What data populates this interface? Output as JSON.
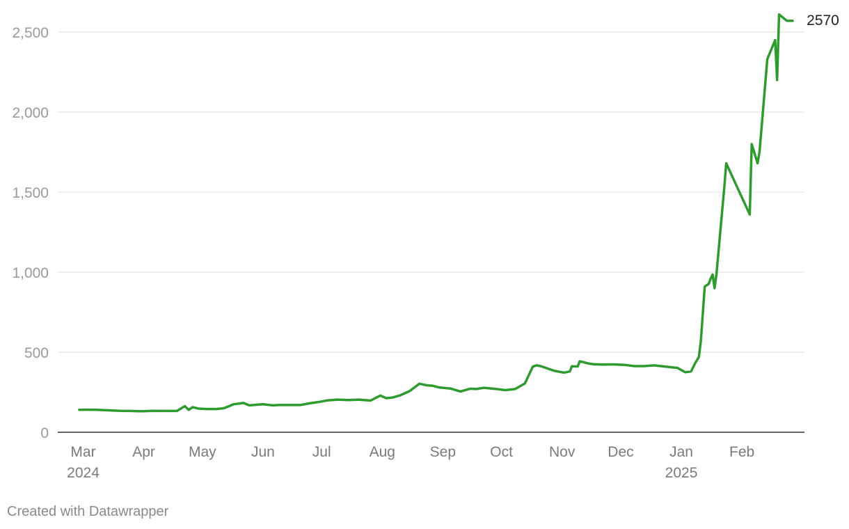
{
  "chart_data": {
    "type": "line",
    "title": "",
    "xlabel": "",
    "ylabel": "",
    "ylim": [
      0,
      2500
    ],
    "yticks": [
      0,
      500,
      1000,
      1500,
      2000,
      2500
    ],
    "ytick_labels": [
      "0",
      "500",
      "1,000",
      "1,500",
      "2,000",
      "2,500"
    ],
    "xtick_labels": [
      {
        "date": "2024-03-01",
        "line1": "Mar",
        "line2": "2024"
      },
      {
        "date": "2024-04-01",
        "line1": "Apr",
        "line2": ""
      },
      {
        "date": "2024-05-01",
        "line1": "May",
        "line2": ""
      },
      {
        "date": "2024-06-01",
        "line1": "Jun",
        "line2": ""
      },
      {
        "date": "2024-07-01",
        "line1": "Jul",
        "line2": ""
      },
      {
        "date": "2024-08-01",
        "line1": "Aug",
        "line2": ""
      },
      {
        "date": "2024-09-01",
        "line1": "Sep",
        "line2": ""
      },
      {
        "date": "2024-10-01",
        "line1": "Oct",
        "line2": ""
      },
      {
        "date": "2024-11-01",
        "line1": "Nov",
        "line2": ""
      },
      {
        "date": "2024-12-01",
        "line1": "Dec",
        "line2": ""
      },
      {
        "date": "2025-01-01",
        "line1": "Jan",
        "line2": "2025"
      },
      {
        "date": "2025-02-01",
        "line1": "Feb",
        "line2": ""
      }
    ],
    "grid": true,
    "color": "#2e9b2e",
    "end_label": "2570",
    "series": [
      {
        "x": [
          "2024-02-28",
          "2024-03-03",
          "2024-03-08",
          "2024-03-14",
          "2024-03-20",
          "2024-03-25",
          "2024-03-31",
          "2024-04-05",
          "2024-04-12",
          "2024-04-18",
          "2024-04-22",
          "2024-04-24",
          "2024-04-26",
          "2024-04-29",
          "2024-05-03",
          "2024-05-08",
          "2024-05-12",
          "2024-05-17",
          "2024-05-22",
          "2024-05-25",
          "2024-06-01",
          "2024-06-06",
          "2024-06-10",
          "2024-06-15",
          "2024-06-20",
          "2024-06-25",
          "2024-06-30",
          "2024-07-04",
          "2024-07-09",
          "2024-07-15",
          "2024-07-20",
          "2024-07-26",
          "2024-07-31",
          "2024-08-03",
          "2024-08-06",
          "2024-08-10",
          "2024-08-15",
          "2024-08-20",
          "2024-08-24",
          "2024-08-27",
          "2024-08-30",
          "2024-09-05",
          "2024-09-10",
          "2024-09-15",
          "2024-09-18",
          "2024-09-22",
          "2024-09-28",
          "2024-10-03",
          "2024-10-08",
          "2024-10-13",
          "2024-10-17",
          "2024-10-19",
          "2024-10-21",
          "2024-10-23",
          "2024-10-28",
          "2024-11-02",
          "2024-11-05",
          "2024-11-06",
          "2024-11-09",
          "2024-11-10",
          "2024-11-12",
          "2024-11-14",
          "2024-11-17",
          "2024-11-22",
          "2024-11-27",
          "2024-12-03",
          "2024-12-08",
          "2024-12-13",
          "2024-12-18",
          "2024-12-24",
          "2024-12-30",
          "2025-01-03",
          "2025-01-06",
          "2025-01-08",
          "2025-01-10",
          "2025-01-11",
          "2025-01-13",
          "2025-01-15",
          "2025-01-16",
          "2025-01-17",
          "2025-01-18",
          "2025-01-19",
          "2025-01-23",
          "2025-01-24",
          "2025-02-05",
          "2025-02-06",
          "2025-02-09",
          "2025-02-10",
          "2025-02-14",
          "2025-02-18",
          "2025-02-19",
          "2025-02-20",
          "2025-02-24",
          "2025-02-25",
          "2025-02-26",
          "2025-02-27"
        ],
        "y": [
          140,
          141,
          140,
          137,
          134,
          133,
          131,
          134,
          133,
          133,
          163,
          140,
          157,
          148,
          145,
          145,
          150,
          175,
          183,
          168,
          175,
          168,
          171,
          170,
          170,
          181,
          190,
          199,
          204,
          201,
          204,
          198,
          229,
          213,
          216,
          230,
          257,
          303,
          293,
          290,
          280,
          273,
          255,
          272,
          270,
          278,
          271,
          263,
          270,
          305,
          410,
          418,
          413,
          405,
          384,
          372,
          380,
          412,
          411,
          443,
          438,
          431,
          425,
          423,
          424,
          421,
          413,
          413,
          418,
          410,
          402,
          375,
          380,
          430,
          470,
          570,
          910,
          927,
          960,
          985,
          900,
          990,
          1530,
          1680,
          1360,
          1800,
          1680,
          1750,
          2330,
          2450,
          2200,
          2610,
          2570,
          2570,
          2570,
          2570
        ]
      }
    ]
  },
  "footer": {
    "credit": "Created with Datawrapper"
  }
}
